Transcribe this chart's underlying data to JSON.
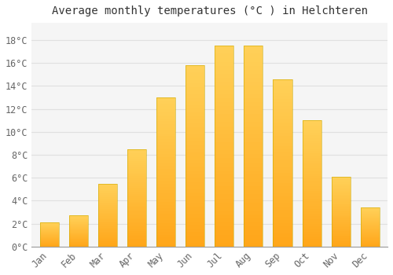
{
  "title": "Average monthly temperatures (°C ) in Helchteren",
  "months": [
    "Jan",
    "Feb",
    "Mar",
    "Apr",
    "May",
    "Jun",
    "Jul",
    "Aug",
    "Sep",
    "Oct",
    "Nov",
    "Dec"
  ],
  "values": [
    2.1,
    2.7,
    5.5,
    8.5,
    13.0,
    15.8,
    17.5,
    17.5,
    14.6,
    11.0,
    6.1,
    3.4
  ],
  "bar_color": "#FFBB33",
  "bar_color_bottom": "#FF9900",
  "background_color": "#ffffff",
  "plot_bg_color": "#f5f5f5",
  "grid_color": "#e0e0e0",
  "yticks": [
    0,
    2,
    4,
    6,
    8,
    10,
    12,
    14,
    16,
    18
  ],
  "ylim": [
    0,
    19.5
  ],
  "ylabel_suffix": "°C",
  "title_fontsize": 10,
  "tick_fontsize": 8.5,
  "title_color": "#333333",
  "tick_color": "#666666",
  "spine_color": "#999999"
}
